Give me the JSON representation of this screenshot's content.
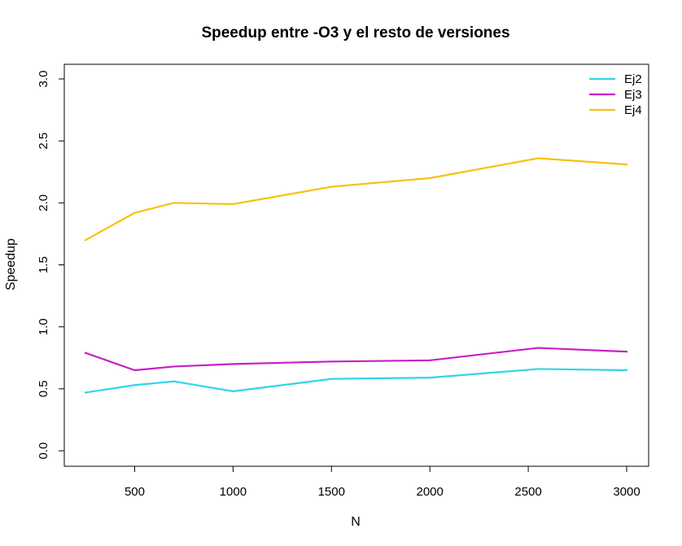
{
  "chart_data": {
    "type": "line",
    "title": "Speedup entre -O3 y el resto de versiones",
    "xlabel": "N",
    "ylabel": "Speedup",
    "xlim": [
      250,
      3000
    ],
    "ylim": [
      0.0,
      3.0
    ],
    "xticks": [
      500,
      1000,
      1500,
      2000,
      2500,
      3000
    ],
    "xtick_labels": [
      "500",
      "1000",
      "1500",
      "2000",
      "2500",
      "3000"
    ],
    "yticks": [
      0.0,
      0.5,
      1.0,
      1.5,
      2.0,
      2.5,
      3.0
    ],
    "ytick_labels": [
      "0.0",
      "0.5",
      "1.0",
      "1.5",
      "2.0",
      "2.5",
      "3.0"
    ],
    "grid": false,
    "legend_position": "top-right",
    "x": [
      250,
      500,
      700,
      1000,
      1500,
      2000,
      2550,
      3000
    ],
    "series": [
      {
        "name": "Ej2",
        "color": "#30d5e8",
        "values": [
          0.47,
          0.53,
          0.56,
          0.48,
          0.58,
          0.59,
          0.66,
          0.65
        ]
      },
      {
        "name": "Ej3",
        "color": "#c81fc6",
        "values": [
          0.79,
          0.65,
          0.68,
          0.7,
          0.72,
          0.73,
          0.83,
          0.8
        ]
      },
      {
        "name": "Ej4",
        "color": "#f5c20f",
        "values": [
          1.7,
          1.92,
          2.0,
          1.99,
          2.13,
          2.2,
          2.36,
          2.31
        ]
      }
    ]
  }
}
